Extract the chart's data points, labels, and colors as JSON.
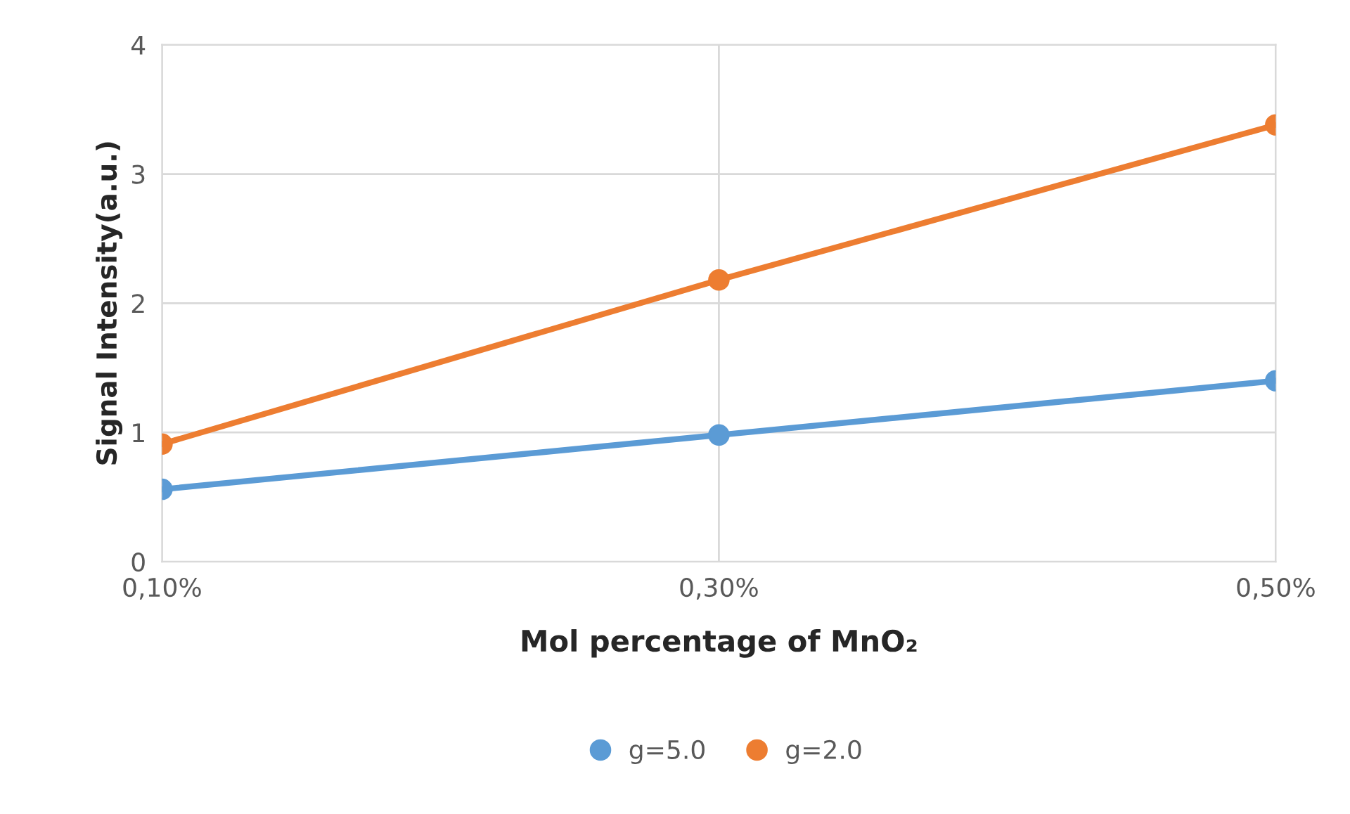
{
  "chart_data": {
    "type": "line",
    "xlabel": "Mol percentage of MnO₂",
    "ylabel": "Signal Intensity(a.u.)",
    "x": [
      0.1,
      0.3,
      0.5
    ],
    "series": [
      {
        "name": "g=5.0",
        "color": "#5b9bd5",
        "values": [
          0.56,
          0.98,
          1.4
        ]
      },
      {
        "name": "g=2.0",
        "color": "#ed7d31",
        "values": [
          0.91,
          2.18,
          3.38
        ]
      }
    ],
    "xlim": [
      0.1,
      0.5
    ],
    "xticks": [
      {
        "value": 0.1,
        "label": "0,10%"
      },
      {
        "value": 0.3,
        "label": "0,30%"
      },
      {
        "value": 0.5,
        "label": "0,50%"
      }
    ],
    "ylim": [
      0,
      4
    ],
    "yticks": [
      0,
      1,
      2,
      3,
      4
    ],
    "grid": true,
    "legend": "bottom",
    "marker": "circle",
    "line_style": "solid"
  }
}
